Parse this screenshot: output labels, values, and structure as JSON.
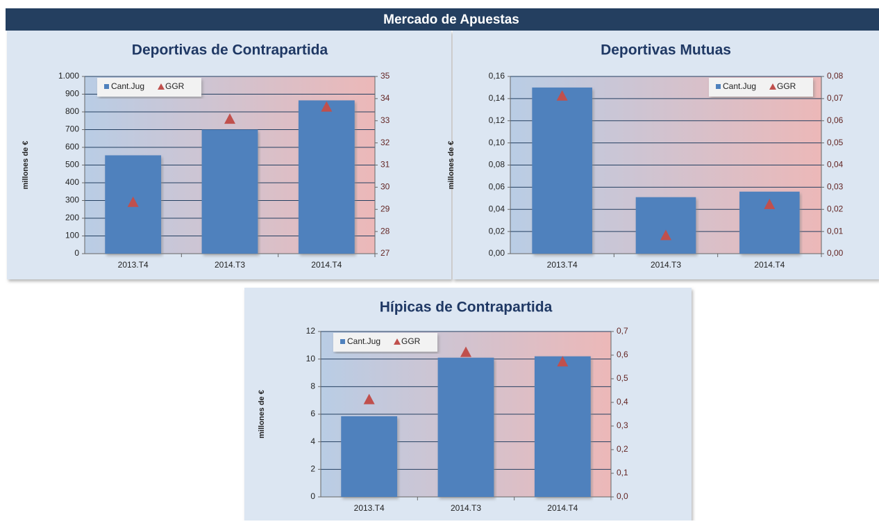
{
  "header": {
    "title": "Mercado de Apuestas"
  },
  "chart_data": [
    {
      "type": "bar",
      "title": "Deportivas de Contrapartida",
      "y_label": "millones de €",
      "categories": [
        "2013.T4",
        "2014.T3",
        "2014.T4"
      ],
      "series": [
        {
          "name": "Cant.Jug",
          "color": "#4f81bd",
          "values": [
            555,
            700,
            865
          ]
        },
        {
          "name": "GGR",
          "color": "#c0504d",
          "values": [
            29.3,
            33.05,
            33.6
          ],
          "axis": "y2"
        }
      ],
      "ylim": [
        0,
        1000
      ],
      "yticks": [
        0,
        100,
        200,
        300,
        400,
        500,
        600,
        700,
        800,
        900,
        {
          "value": 1000,
          "label": "1.000"
        }
      ],
      "y2lim": [
        27,
        35
      ],
      "y2ticks": [
        27,
        28,
        29,
        30,
        31,
        32,
        33,
        34,
        35
      ],
      "grid": true,
      "legend": "top-left"
    },
    {
      "type": "bar",
      "title": "Deportivas Mutuas",
      "y_label": "millones de €",
      "categories": [
        "2013.T4",
        "2014.T3",
        "2014.T4"
      ],
      "series": [
        {
          "name": "Cant.Jug",
          "color": "#4f81bd",
          "values": [
            0.15,
            0.051,
            0.056
          ]
        },
        {
          "name": "GGR",
          "color": "#c0504d",
          "values": [
            0.071,
            0.008,
            0.022
          ],
          "axis": "y2"
        }
      ],
      "ylim": [
        0,
        0.16
      ],
      "yticks": [
        {
          "value": 0,
          "label": "0,00"
        },
        {
          "value": 0.02,
          "label": "0,02"
        },
        {
          "value": 0.04,
          "label": "0,04"
        },
        {
          "value": 0.06,
          "label": "0,06"
        },
        {
          "value": 0.08,
          "label": "0,08"
        },
        {
          "value": 0.1,
          "label": "0,10"
        },
        {
          "value": 0.12,
          "label": "0,12"
        },
        {
          "value": 0.14,
          "label": "0,14"
        },
        {
          "value": 0.16,
          "label": "0,16"
        }
      ],
      "y2lim": [
        0,
        0.08
      ],
      "y2ticks": [
        {
          "value": 0,
          "label": "0,00"
        },
        {
          "value": 0.01,
          "label": "0,01"
        },
        {
          "value": 0.02,
          "label": "0,02"
        },
        {
          "value": 0.03,
          "label": "0,03"
        },
        {
          "value": 0.04,
          "label": "0,04"
        },
        {
          "value": 0.05,
          "label": "0,05"
        },
        {
          "value": 0.06,
          "label": "0,06"
        },
        {
          "value": 0.07,
          "label": "0,07"
        },
        {
          "value": 0.08,
          "label": "0,08"
        }
      ],
      "grid": true,
      "legend": "top-right"
    },
    {
      "type": "bar",
      "title": "Hípicas de Contrapartida",
      "y_label": "millones de €",
      "categories": [
        "2013.T4",
        "2014.T3",
        "2014.T4"
      ],
      "series": [
        {
          "name": "Cant.Jug",
          "color": "#4f81bd",
          "values": [
            5.85,
            10.1,
            10.2
          ]
        },
        {
          "name": "GGR",
          "color": "#c0504d",
          "values": [
            0.41,
            0.61,
            0.57
          ],
          "axis": "y2"
        }
      ],
      "ylim": [
        0,
        12
      ],
      "yticks": [
        0,
        2,
        4,
        6,
        8,
        10,
        12
      ],
      "y2lim": [
        0,
        0.7
      ],
      "y2ticks": [
        {
          "value": 0,
          "label": "0,0"
        },
        {
          "value": 0.1,
          "label": "0,1"
        },
        {
          "value": 0.2,
          "label": "0,2"
        },
        {
          "value": 0.3,
          "label": "0,3"
        },
        {
          "value": 0.4,
          "label": "0,4"
        },
        {
          "value": 0.5,
          "label": "0,5"
        },
        {
          "value": 0.6,
          "label": "0,6"
        },
        {
          "value": 0.7,
          "label": "0,7"
        }
      ],
      "grid": true,
      "legend": "top-left"
    }
  ]
}
